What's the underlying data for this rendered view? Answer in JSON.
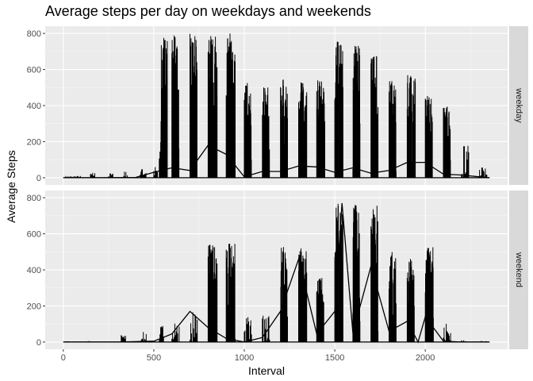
{
  "chart_data": {
    "type": "line",
    "title": "Average steps per day on weekdays and weekends",
    "xlabel": "Interval",
    "ylabel": "Average Steps",
    "xlim": [
      -100,
      2455
    ],
    "ylim": [
      -40,
      840
    ],
    "x_ticks": [
      0,
      500,
      1000,
      1500,
      2000
    ],
    "y_ticks": [
      0,
      200,
      400,
      600,
      800
    ],
    "grid": true,
    "facets": [
      {
        "label": "weekday",
        "clusters": [
          {
            "s": 10,
            "e": 95,
            "m": 10
          },
          {
            "s": 150,
            "e": 175,
            "m": 30
          },
          {
            "s": 250,
            "e": 275,
            "m": 25
          },
          {
            "s": 330,
            "e": 355,
            "m": 35
          },
          {
            "s": 425,
            "e": 460,
            "m": 50
          },
          {
            "s": 500,
            "e": 520,
            "m": 60
          },
          {
            "s": 530,
            "e": 560,
            "m": 210
          },
          {
            "s": 540,
            "e": 575,
            "m": 800
          },
          {
            "s": 600,
            "e": 640,
            "m": 800
          },
          {
            "s": 700,
            "e": 740,
            "m": 800
          },
          {
            "s": 800,
            "e": 850,
            "m": 800
          },
          {
            "s": 900,
            "e": 950,
            "m": 800
          },
          {
            "s": 1000,
            "e": 1040,
            "m": 545
          },
          {
            "s": 1100,
            "e": 1140,
            "m": 510
          },
          {
            "s": 1200,
            "e": 1240,
            "m": 545
          },
          {
            "s": 1300,
            "e": 1345,
            "m": 535
          },
          {
            "s": 1400,
            "e": 1445,
            "m": 555
          },
          {
            "s": 1500,
            "e": 1545,
            "m": 765
          },
          {
            "s": 1600,
            "e": 1640,
            "m": 735
          },
          {
            "s": 1700,
            "e": 1740,
            "m": 690
          },
          {
            "s": 1800,
            "e": 1840,
            "m": 540
          },
          {
            "s": 1900,
            "e": 1945,
            "m": 575
          },
          {
            "s": 2000,
            "e": 2040,
            "m": 460
          },
          {
            "s": 2100,
            "e": 2140,
            "m": 400
          },
          {
            "s": 2200,
            "e": 2240,
            "m": 190
          },
          {
            "s": 2300,
            "e": 2340,
            "m": 60
          }
        ],
        "trend": [
          [
            0,
            0
          ],
          [
            200,
            0
          ],
          [
            400,
            2
          ],
          [
            500,
            30
          ],
          [
            600,
            55
          ],
          [
            700,
            40
          ],
          [
            800,
            180
          ],
          [
            900,
            130
          ],
          [
            1000,
            5
          ],
          [
            1100,
            35
          ],
          [
            1200,
            35
          ],
          [
            1300,
            65
          ],
          [
            1400,
            60
          ],
          [
            1500,
            30
          ],
          [
            1600,
            55
          ],
          [
            1700,
            25
          ],
          [
            1800,
            40
          ],
          [
            1900,
            85
          ],
          [
            2000,
            85
          ],
          [
            2100,
            20
          ],
          [
            2200,
            15
          ],
          [
            2300,
            5
          ],
          [
            2355,
            0
          ]
        ]
      },
      {
        "label": "weekend",
        "clusters": [
          {
            "s": 10,
            "e": 30,
            "m": 5
          },
          {
            "s": 120,
            "e": 145,
            "m": 5
          },
          {
            "s": 320,
            "e": 345,
            "m": 40
          },
          {
            "s": 430,
            "e": 460,
            "m": 60
          },
          {
            "s": 530,
            "e": 555,
            "m": 90
          },
          {
            "s": 600,
            "e": 640,
            "m": 110
          },
          {
            "s": 700,
            "e": 740,
            "m": 170
          },
          {
            "s": 800,
            "e": 850,
            "m": 545
          },
          {
            "s": 900,
            "e": 950,
            "m": 550
          },
          {
            "s": 1000,
            "e": 1040,
            "m": 140
          },
          {
            "s": 1100,
            "e": 1140,
            "m": 160
          },
          {
            "s": 1200,
            "e": 1240,
            "m": 530
          },
          {
            "s": 1300,
            "e": 1345,
            "m": 520
          },
          {
            "s": 1400,
            "e": 1440,
            "m": 360
          },
          {
            "s": 1500,
            "e": 1545,
            "m": 770
          },
          {
            "s": 1600,
            "e": 1640,
            "m": 785
          },
          {
            "s": 1700,
            "e": 1740,
            "m": 770
          },
          {
            "s": 1800,
            "e": 1840,
            "m": 510
          },
          {
            "s": 1900,
            "e": 1940,
            "m": 480
          },
          {
            "s": 2000,
            "e": 2045,
            "m": 530
          },
          {
            "s": 2100,
            "e": 2140,
            "m": 105
          },
          {
            "s": 2200,
            "e": 2230,
            "m": 10
          },
          {
            "s": 2300,
            "e": 2340,
            "m": 5
          }
        ],
        "trend": [
          [
            0,
            0
          ],
          [
            300,
            0
          ],
          [
            500,
            5
          ],
          [
            600,
            45
          ],
          [
            700,
            170
          ],
          [
            800,
            80
          ],
          [
            900,
            20
          ],
          [
            1000,
            0
          ],
          [
            1100,
            25
          ],
          [
            1200,
            170
          ],
          [
            1300,
            460
          ],
          [
            1400,
            45
          ],
          [
            1500,
            170
          ],
          [
            1540,
            770
          ],
          [
            1600,
            50
          ],
          [
            1700,
            420
          ],
          [
            1800,
            60
          ],
          [
            1900,
            115
          ],
          [
            1960,
            0
          ],
          [
            2000,
            140
          ],
          [
            2100,
            5
          ],
          [
            2200,
            0
          ],
          [
            2355,
            0
          ]
        ]
      }
    ]
  }
}
